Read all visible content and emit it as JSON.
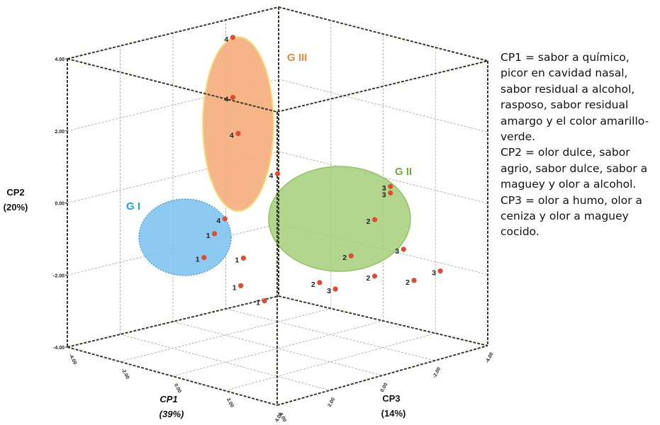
{
  "chart_data": {
    "type": "scatter",
    "projection": "3d",
    "axes": {
      "x": {
        "label": "CP1",
        "pct": "(39%)",
        "range": [
          -4,
          4
        ],
        "ticks": [
          "-4.00",
          "-2.00",
          "0.00",
          "2.00",
          "4.00"
        ]
      },
      "y": {
        "label": "CP2",
        "pct": "(20%)",
        "range": [
          -4,
          4
        ],
        "ticks": [
          "-4.00",
          "-2.00",
          "0.00",
          "2.00",
          "4.00"
        ]
      },
      "z": {
        "label": "CP3",
        "pct": "(14%)",
        "range": [
          -4,
          4
        ],
        "ticks": [
          "4.00",
          "2.00",
          "0.00",
          "-2.00",
          "-4.00"
        ]
      }
    },
    "grid": true,
    "groups": [
      {
        "name": "G I",
        "color": "#1ba1d6",
        "fill": "#7fc4ef",
        "ellipse_border": "#4aa3d8"
      },
      {
        "name": "G II",
        "color": "#6fae3c",
        "fill": "#a4cf79",
        "ellipse_border": "#8fc45e"
      },
      {
        "name": "G III",
        "color": "#e58a42",
        "fill": "#f5ad7c",
        "ellipse_border": "#f2e07a"
      }
    ],
    "points": [
      {
        "label": "4",
        "group": "G III",
        "cp1": -0.5,
        "cp2": 4.7,
        "cp3": 1.2
      },
      {
        "label": "4",
        "group": "G III",
        "cp1": -0.6,
        "cp2": 3.0,
        "cp3": 1.1
      },
      {
        "label": "4",
        "group": "G III",
        "cp1": -0.5,
        "cp2": 2.0,
        "cp3": 1.0
      },
      {
        "label": "4",
        "group": "G III",
        "cp1": 0.3,
        "cp2": 0.9,
        "cp3": 0.3
      },
      {
        "label": "4",
        "group": "G III",
        "cp1": -0.6,
        "cp2": -0.3,
        "cp3": 1.4
      },
      {
        "label": "1",
        "group": "G I",
        "cp1": -2.0,
        "cp2": -1.2,
        "cp3": 0.4
      },
      {
        "label": "1",
        "group": "G I",
        "cp1": -2.3,
        "cp2": -1.9,
        "cp3": 0.5
      },
      {
        "label": "1",
        "group": "G I",
        "cp1": -1.5,
        "cp2": -1.9,
        "cp3": -0.2
      },
      {
        "label": "1",
        "group": "G I",
        "cp1": -1.4,
        "cp2": -2.6,
        "cp3": 0.0
      },
      {
        "label": "1",
        "group": "G I",
        "cp1": -0.9,
        "cp2": -3.0,
        "cp3": -0.4
      },
      {
        "label": "3",
        "group": "G II",
        "cp1": 2.6,
        "cp2": 0.6,
        "cp3": -1.7
      },
      {
        "label": "3",
        "group": "G II",
        "cp1": 2.8,
        "cp2": 0.5,
        "cp3": -1.5
      },
      {
        "label": "2",
        "group": "G II",
        "cp1": 2.1,
        "cp2": -0.4,
        "cp3": -1.6
      },
      {
        "label": "3",
        "group": "G II",
        "cp1": 3.2,
        "cp2": -1.0,
        "cp3": -1.6
      },
      {
        "label": "2",
        "group": "G II",
        "cp1": 1.4,
        "cp2": -1.5,
        "cp3": -1.4
      },
      {
        "label": "2",
        "group": "G II",
        "cp1": 2.5,
        "cp2": -1.8,
        "cp3": -1.2
      },
      {
        "label": "2",
        "group": "G II",
        "cp1": 0.4,
        "cp2": -2.4,
        "cp3": -1.2
      },
      {
        "label": "3",
        "group": "G II",
        "cp1": 0.9,
        "cp2": -2.5,
        "cp3": -1.3
      },
      {
        "label": "2",
        "group": "G II",
        "cp1": 3.8,
        "cp2": -1.7,
        "cp3": -1.4
      },
      {
        "label": "3",
        "group": "G II",
        "cp1": 4.4,
        "cp2": -1.4,
        "cp3": -1.8
      }
    ],
    "annotations": [
      "CP1 = sabor a químico, picor en cavidad nasal, sabor residual a alcohol, rasposo, sabor residual amargo y el color amarillo-verde.",
      "CP2 = olor dulce, sabor agrio, sabor dulce, sabor a maguey y olor a alcohol.",
      "CP3 = olor a humo, olor a ceniza y olor a maguey cocido."
    ]
  }
}
